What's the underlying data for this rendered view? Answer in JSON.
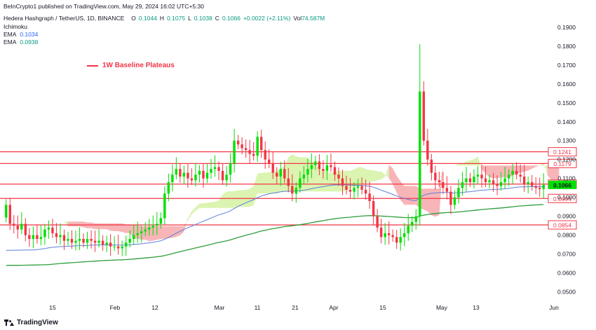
{
  "publisher_line": "BeInCrypto1 published on TradingView.com, May 29, 2024 16:02 UTC+5:30",
  "header": {
    "symbol": "Hedera Hashgraph / TetherUS, 1D, BINANCE",
    "o_label": "O",
    "o_value": "0.1044",
    "h_label": "H",
    "h_value": "0.1075",
    "l_label": "L",
    "l_value": "0.1038",
    "c_label": "C",
    "c_value": "0.1066",
    "change": "+0.0022 (+2.11%)",
    "vol_label": "Vol",
    "vol_value": "74.587M"
  },
  "indicators": [
    {
      "name": "Ichimoku",
      "value": ""
    },
    {
      "name": "EMA",
      "value": "0.1034",
      "color": "#2962ff"
    },
    {
      "name": "EMA",
      "value": "0.0938",
      "color": "#089981"
    }
  ],
  "annotation": {
    "label": "1W Baseline Plateaus",
    "color": "#f23645"
  },
  "footer_logo": "TradingView",
  "colors": {
    "up": "#00e000",
    "down": "#f23645",
    "level": "#f23645",
    "ema_fast": "#5b7fdb",
    "ema_slow": "#2e9e3a",
    "cloud_bull": "#d5f2a3",
    "cloud_bear": "#f7a8ac"
  },
  "chart_data": {
    "type": "candlestick",
    "title": "Hedera Hashgraph / TetherUS, 1D, BINANCE",
    "x_tick_labels": [
      "15",
      "Feb",
      "12",
      "Mar",
      "11",
      "21",
      "Apr",
      "15",
      "May",
      "13",
      "Jun"
    ],
    "y_ticks": [
      "0.0500",
      "0.0600",
      "0.0700",
      "0.0800",
      "0.0900",
      "0.1000",
      "0.1100",
      "0.1200",
      "0.1300",
      "0.1400",
      "0.1500",
      "0.1600",
      "0.1700",
      "0.1800",
      "0.1900"
    ],
    "ylim": [
      0.045,
      0.197
    ],
    "horizontal_levels": [
      {
        "value": 0.1241,
        "label": "0.1241"
      },
      {
        "value": 0.1179,
        "label": "0.1179"
      },
      {
        "value": 0.107,
        "label": "0.1070"
      },
      {
        "value": 0.0994,
        "label": "0.0994"
      },
      {
        "value": 0.0854,
        "label": "0.0854"
      }
    ],
    "last_price": {
      "value": 0.1066,
      "label": "0.1066"
    },
    "closes": [
      0.096,
      0.086,
      0.085,
      0.083,
      0.086,
      0.08,
      0.078,
      0.08,
      0.078,
      0.079,
      0.083,
      0.084,
      0.081,
      0.079,
      0.08,
      0.077,
      0.078,
      0.076,
      0.077,
      0.078,
      0.076,
      0.078,
      0.077,
      0.076,
      0.077,
      0.075,
      0.076,
      0.074,
      0.074,
      0.073,
      0.074,
      0.076,
      0.078,
      0.08,
      0.081,
      0.082,
      0.083,
      0.084,
      0.085,
      0.086,
      0.089,
      0.102,
      0.108,
      0.112,
      0.115,
      0.111,
      0.113,
      0.11,
      0.109,
      0.112,
      0.114,
      0.11,
      0.113,
      0.115,
      0.116,
      0.114,
      0.109,
      0.112,
      0.118,
      0.13,
      0.128,
      0.126,
      0.125,
      0.123,
      0.122,
      0.132,
      0.125,
      0.12,
      0.118,
      0.113,
      0.111,
      0.115,
      0.11,
      0.106,
      0.102,
      0.105,
      0.11,
      0.112,
      0.115,
      0.117,
      0.119,
      0.115,
      0.114,
      0.117,
      0.116,
      0.112,
      0.11,
      0.106,
      0.104,
      0.103,
      0.105,
      0.106,
      0.104,
      0.102,
      0.098,
      0.09,
      0.084,
      0.079,
      0.081,
      0.08,
      0.079,
      0.076,
      0.079,
      0.081,
      0.085,
      0.087,
      0.09,
      0.156,
      0.13,
      0.12,
      0.113,
      0.109,
      0.108,
      0.105,
      0.103,
      0.096,
      0.1,
      0.105,
      0.108,
      0.11,
      0.108,
      0.111,
      0.112,
      0.11,
      0.108,
      0.109,
      0.107,
      0.106,
      0.108,
      0.11,
      0.112,
      0.114,
      0.112,
      0.111,
      0.107,
      0.108,
      0.106,
      0.105,
      0.1044,
      0.1066
    ]
  }
}
